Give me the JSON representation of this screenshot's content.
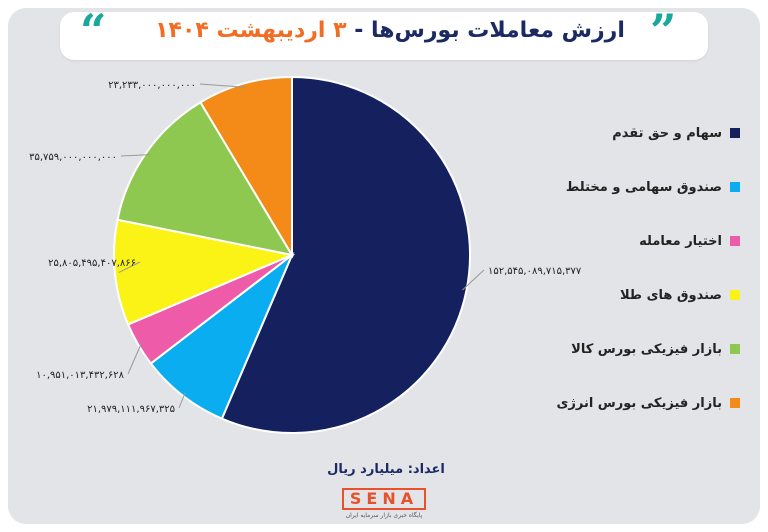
{
  "header": {
    "title_main": "ارزش معاملات بورس‌ها - ",
    "title_date": "۳ اردیبهشت ۱۴۰۴",
    "quote_open": "“",
    "quote_close": "”"
  },
  "footer": {
    "unit_text": "اعداد: میلیارد ریال",
    "logo_word": "SENA",
    "logo_subtitle": "پایگاه خبری بازار سرمایه ایران"
  },
  "chart_data": {
    "type": "pie",
    "title": "ارزش معاملات بورس‌ها - ۳ اردیبهشت ۱۴۰۴",
    "unit": "اعداد: میلیارد ریال",
    "start_angle_deg": 0,
    "direction": "clockwise",
    "legend_position": "right",
    "slices": [
      {
        "name": "سهام و حق تقدم",
        "value": 152545089715377,
        "label": "۱۵۲,۵۴۵,۰۸۹,۷۱۵,۳۷۷",
        "color": "#14215e"
      },
      {
        "name": "صندوق سهامی و مختلط",
        "value": 21979111967325,
        "label": "۲۱,۹۷۹,۱۱۱,۹۶۷,۳۲۵",
        "color": "#0aaef0"
      },
      {
        "name": "اختیار معامله",
        "value": 10951013432628,
        "label": "۱۰,۹۵۱,۰۱۳,۴۳۲,۶۲۸",
        "color": "#ee5ca9"
      },
      {
        "name": "صندوق های طلا",
        "value": 25805495407866,
        "label": "۲۵,۸۰۵,۴۹۵,۴۰۷,۸۶۶",
        "color": "#fbf315"
      },
      {
        "name": "بازار فیزیکی بورس کالا",
        "value": 35759000000000,
        "label": "۳۵,۷۵۹,۰۰۰,۰۰۰,۰۰۰",
        "color": "#8fc850"
      },
      {
        "name": "بازار فیزیکی بورس انرژی",
        "value": 23233000000000,
        "label": "۲۳,۲۳۳,۰۰۰,۰۰۰,۰۰۰",
        "color": "#f48a17"
      }
    ]
  }
}
